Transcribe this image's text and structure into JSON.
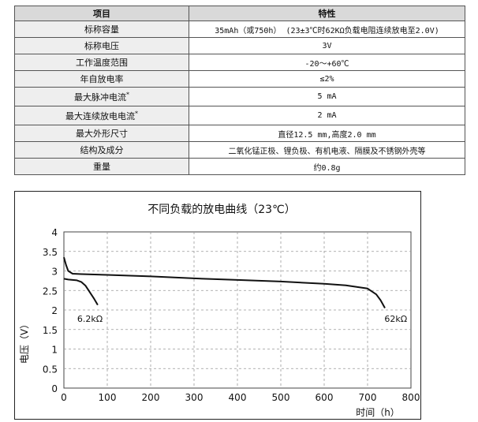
{
  "table": {
    "header": {
      "item": "项目",
      "spec": "特性"
    },
    "rows": [
      {
        "key": "标称容量",
        "value": "35mAh（或750h）  (23±3℃时62KΩ负载电阻连续放电至2.0V)"
      },
      {
        "key": "标称电压",
        "value": "3V"
      },
      {
        "key": "工作温度范围",
        "value": "-20～+60℃"
      },
      {
        "key": "年自放电率",
        "value": "≤2%"
      },
      {
        "key": "最大脉冲电流",
        "sup": "*",
        "value": "5 mA"
      },
      {
        "key": "最大连续放电电流",
        "sup": "*",
        "value": "2 mA"
      },
      {
        "key": "最大外形尺寸",
        "value": "直径12.5 mm,高度2.0 mm"
      },
      {
        "key": "结构及成分",
        "value": "二氧化锰正极、锂负极、有机电液、隔膜及不锈钢外壳等"
      },
      {
        "key": "重量",
        "value": "约0.8g"
      }
    ]
  },
  "chart_data": {
    "type": "line",
    "title": "不同负载的放电曲线（23℃）",
    "xlabel": "时间（h）",
    "ylabel": "电压（V）",
    "xlim": [
      0,
      800
    ],
    "ylim": [
      0,
      4
    ],
    "x_ticks": [
      "0",
      "100",
      "200",
      "300",
      "400",
      "500",
      "600",
      "700",
      "800"
    ],
    "y_ticks": [
      "0",
      "0.5",
      "1",
      "1.5",
      "2",
      "2.5",
      "3",
      "3.5",
      "4"
    ],
    "grid": true,
    "series": [
      {
        "name": "6.2kΩ",
        "x": [
          0,
          5,
          10,
          20,
          30,
          40,
          50,
          60,
          70,
          78
        ],
        "y": [
          2.8,
          2.79,
          2.78,
          2.77,
          2.76,
          2.72,
          2.62,
          2.45,
          2.28,
          2.13
        ]
      },
      {
        "name": "62kΩ",
        "x": [
          0,
          5,
          10,
          20,
          40,
          100,
          200,
          300,
          400,
          500,
          600,
          650,
          700,
          720,
          730,
          740
        ],
        "y": [
          3.35,
          3.15,
          3.0,
          2.93,
          2.92,
          2.9,
          2.86,
          2.81,
          2.77,
          2.73,
          2.67,
          2.63,
          2.55,
          2.4,
          2.25,
          2.05
        ]
      }
    ],
    "annotations": [
      "6.2kΩ",
      "62kΩ"
    ]
  }
}
